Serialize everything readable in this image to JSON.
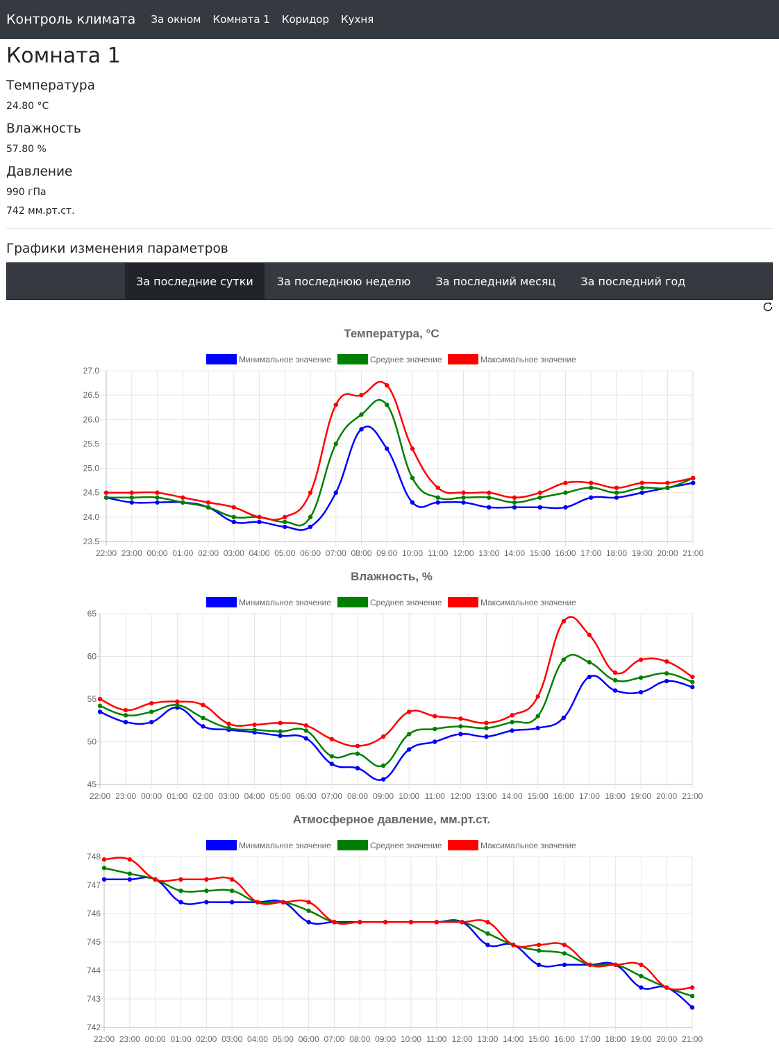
{
  "navbar": {
    "brand": "Контроль климата",
    "links": [
      "За окном",
      "Комната 1",
      "Коридор",
      "Кухня"
    ]
  },
  "room": {
    "title": "Комната 1",
    "temperature_label": "Температура",
    "temperature_value": "24.80 °C",
    "humidity_label": "Влажность",
    "humidity_value": "57.80 %",
    "pressure_label": "Давление",
    "pressure_hpa": "990 гПа",
    "pressure_mmhg": "742 мм.рт.ст."
  },
  "charts_section": {
    "title": "Графики изменения параметров",
    "tabs": [
      "За последние сутки",
      "За последнюю неделю",
      "За последний месяц",
      "За последний год"
    ],
    "active_tab": 0,
    "refresh_icon": "refresh-icon"
  },
  "colors": {
    "min": "#0000ff",
    "avg": "#008000",
    "max": "#ff0000"
  },
  "chart_data": [
    {
      "type": "line",
      "title": "Температура, °C",
      "categories": [
        "22:00",
        "23:00",
        "00:00",
        "01:00",
        "02:00",
        "03:00",
        "04:00",
        "05:00",
        "06:00",
        "07:00",
        "08:00",
        "09:00",
        "10:00",
        "11:00",
        "12:00",
        "13:00",
        "14:00",
        "15:00",
        "16:00",
        "17:00",
        "18:00",
        "19:00",
        "20:00",
        "21:00"
      ],
      "ylim": [
        23.5,
        27.0
      ],
      "yticks": [
        "23.5",
        "24.0",
        "24.5",
        "25.0",
        "25.5",
        "26.0",
        "26.5",
        "27.0"
      ],
      "grid": true,
      "legend_position": "top",
      "series": [
        {
          "name": "Минимальное значение",
          "color": "#0000ff",
          "values": [
            24.4,
            24.3,
            24.3,
            24.3,
            24.2,
            23.9,
            23.9,
            23.8,
            23.8,
            24.5,
            25.8,
            25.4,
            24.3,
            24.3,
            24.3,
            24.2,
            24.2,
            24.2,
            24.2,
            24.4,
            24.4,
            24.5,
            24.6,
            24.7
          ]
        },
        {
          "name": "Среднее значение",
          "color": "#008000",
          "values": [
            24.4,
            24.4,
            24.4,
            24.3,
            24.2,
            24.0,
            24.0,
            23.9,
            24.0,
            25.5,
            26.1,
            26.3,
            24.8,
            24.4,
            24.4,
            24.4,
            24.3,
            24.4,
            24.5,
            24.6,
            24.5,
            24.6,
            24.6,
            24.8
          ]
        },
        {
          "name": "Максимальное значение",
          "color": "#ff0000",
          "values": [
            24.5,
            24.5,
            24.5,
            24.4,
            24.3,
            24.2,
            24.0,
            24.0,
            24.5,
            26.3,
            26.5,
            26.7,
            25.4,
            24.6,
            24.5,
            24.5,
            24.4,
            24.5,
            24.7,
            24.7,
            24.6,
            24.7,
            24.7,
            24.8
          ]
        }
      ]
    },
    {
      "type": "line",
      "title": "Влажность, %",
      "categories": [
        "22:00",
        "23:00",
        "00:00",
        "01:00",
        "02:00",
        "03:00",
        "04:00",
        "05:00",
        "06:00",
        "07:00",
        "08:00",
        "09:00",
        "10:00",
        "11:00",
        "12:00",
        "13:00",
        "14:00",
        "15:00",
        "16:00",
        "17:00",
        "18:00",
        "19:00",
        "20:00",
        "21:00"
      ],
      "ylim": [
        45,
        65
      ],
      "yticks": [
        "45",
        "50",
        "55",
        "60",
        "65"
      ],
      "grid": true,
      "legend_position": "top",
      "series": [
        {
          "name": "Минимальное значение",
          "color": "#0000ff",
          "values": [
            53.5,
            52.3,
            52.3,
            54.0,
            51.8,
            51.4,
            51.1,
            50.7,
            50.4,
            47.4,
            46.9,
            45.6,
            49.1,
            50.0,
            50.9,
            50.6,
            51.3,
            51.6,
            52.8,
            57.6,
            56.0,
            55.8,
            57.1,
            56.4
          ]
        },
        {
          "name": "Среднее значение",
          "color": "#008000",
          "values": [
            54.2,
            53.1,
            53.5,
            54.3,
            52.8,
            51.6,
            51.4,
            51.2,
            51.3,
            48.3,
            48.6,
            47.2,
            50.9,
            51.5,
            51.8,
            51.6,
            52.3,
            53.0,
            59.6,
            59.3,
            57.2,
            57.5,
            58.0,
            57.0
          ]
        },
        {
          "name": "Максимальное значение",
          "color": "#ff0000",
          "values": [
            55.0,
            53.7,
            54.5,
            54.7,
            54.3,
            52.1,
            52.0,
            52.2,
            51.9,
            50.3,
            49.5,
            50.6,
            53.5,
            53.0,
            52.7,
            52.2,
            53.1,
            55.3,
            64.1,
            62.5,
            58.1,
            59.6,
            59.4,
            57.6
          ]
        }
      ]
    },
    {
      "type": "line",
      "title": "Атмосферное давление, мм.рт.ст.",
      "categories": [
        "22:00",
        "23:00",
        "00:00",
        "01:00",
        "02:00",
        "03:00",
        "04:00",
        "05:00",
        "06:00",
        "07:00",
        "08:00",
        "09:00",
        "10:00",
        "11:00",
        "12:00",
        "13:00",
        "14:00",
        "15:00",
        "16:00",
        "17:00",
        "18:00",
        "19:00",
        "20:00",
        "21:00"
      ],
      "ylim": [
        742,
        748
      ],
      "yticks": [
        "742",
        "743",
        "744",
        "745",
        "746",
        "747",
        "748"
      ],
      "grid": true,
      "legend_position": "top",
      "series": [
        {
          "name": "Минимальное значение",
          "color": "#0000ff",
          "values": [
            747.2,
            747.2,
            747.2,
            746.4,
            746.4,
            746.4,
            746.4,
            746.4,
            745.7,
            745.7,
            745.7,
            745.7,
            745.7,
            745.7,
            745.7,
            744.9,
            744.9,
            744.2,
            744.2,
            744.2,
            744.2,
            743.4,
            743.4,
            742.7
          ]
        },
        {
          "name": "Среднее значение",
          "color": "#008000",
          "values": [
            747.6,
            747.4,
            747.2,
            746.8,
            746.8,
            746.8,
            746.4,
            746.4,
            746.1,
            745.7,
            745.7,
            745.7,
            745.7,
            745.7,
            745.7,
            745.3,
            744.9,
            744.7,
            744.6,
            744.2,
            744.2,
            743.8,
            743.4,
            743.1
          ]
        },
        {
          "name": "Максимальное значение",
          "color": "#ff0000",
          "values": [
            747.9,
            747.9,
            747.2,
            747.2,
            747.2,
            747.2,
            746.4,
            746.4,
            746.4,
            745.7,
            745.7,
            745.7,
            745.7,
            745.7,
            745.7,
            745.7,
            744.9,
            744.9,
            744.9,
            744.2,
            744.2,
            744.2,
            743.4,
            743.4
          ]
        }
      ]
    }
  ]
}
